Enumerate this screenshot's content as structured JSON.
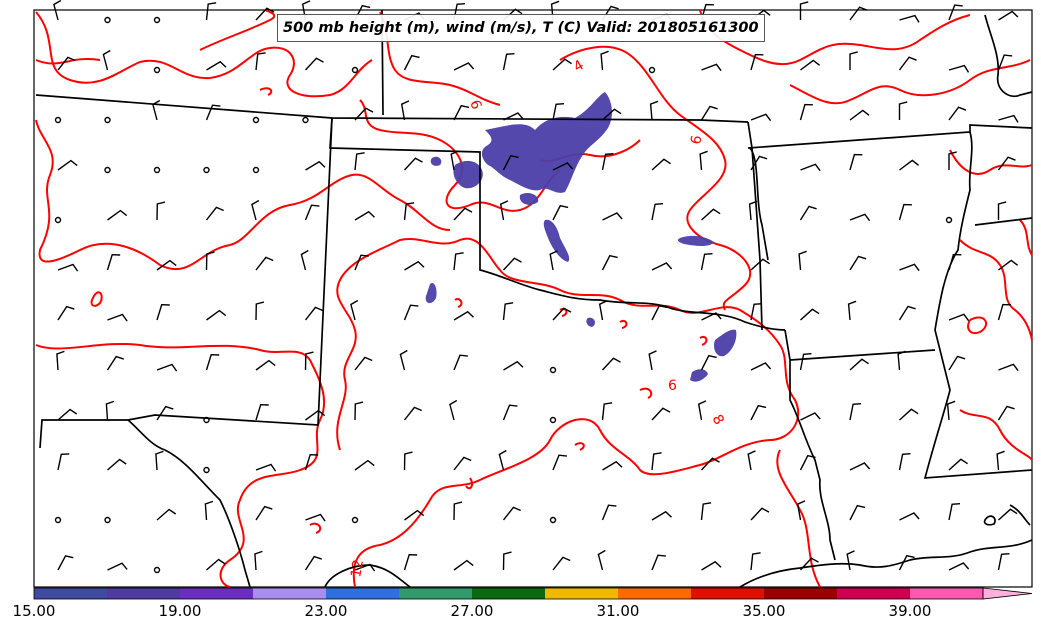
{
  "title": "500 mb height (m), wind (m/s), T (C) Valid: 201805161300",
  "colorbar": {
    "ticks": [
      "15.00",
      "19.00",
      "23.00",
      "27.00",
      "31.00",
      "35.00",
      "39.00"
    ],
    "colors": [
      "#3f4aa0",
      "#4e3aa0",
      "#6a2fc0",
      "#a98ef0",
      "#2f6fe0",
      "#2f9a6a",
      "#0a6a10",
      "#f0b800",
      "#ff6a00",
      "#e01000",
      "#9a0000",
      "#d00050",
      "#ff5ab0",
      "#ffb0dc"
    ],
    "extend": "max"
  },
  "contour_labels": [
    "4",
    "6",
    "6",
    "6",
    "8",
    "12"
  ],
  "colors": {
    "temperature_contour": "#ff0000",
    "state_border": "#000000",
    "precip_fill": "#4b3fa8"
  }
}
